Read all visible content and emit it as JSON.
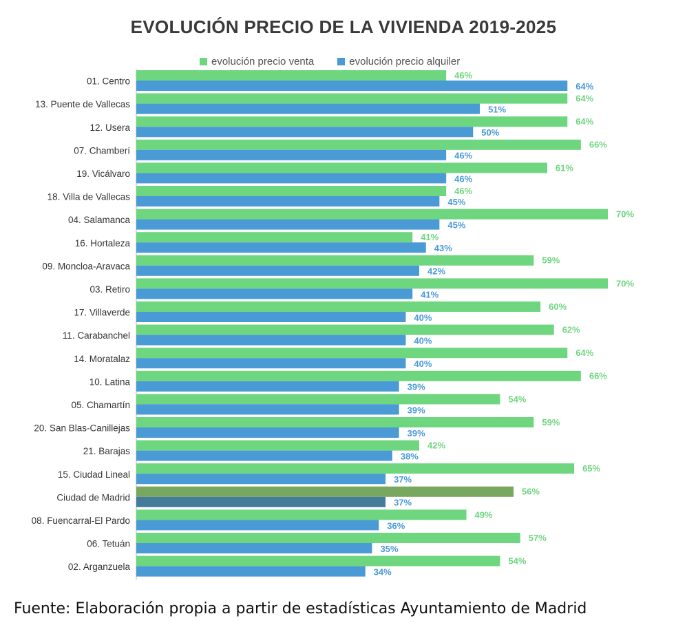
{
  "chart_data": {
    "type": "bar",
    "orientation": "horizontal",
    "title": "EVOLUCIÓN PRECIO DE LA VIVIENDA 2019-2025",
    "categories": [
      "01. Centro",
      "13. Puente de Vallecas",
      "12. Usera",
      "07. Chamberí",
      "19. Vicálvaro",
      "18. Villa de Vallecas",
      "04. Salamanca",
      "16. Hortaleza",
      "09. Moncloa-Aravaca",
      "03. Retiro",
      "17. Villaverde",
      "11. Carabanchel",
      "14. Moratalaz",
      "10. Latina",
      "05. Chamartín",
      "20. San Blas-Canillejas",
      "21. Barajas",
      "15. Ciudad Lineal",
      "Ciudad de Madrid",
      "08. Fuencarral-El Pardo",
      "06. Tetuán",
      "02. Arganzuela"
    ],
    "series": [
      {
        "name": "evolución precio venta",
        "color": "#6ed67f",
        "values": [
          46,
          64,
          64,
          66,
          61,
          46,
          70,
          41,
          59,
          70,
          60,
          62,
          64,
          66,
          54,
          59,
          42,
          65,
          56,
          49,
          57,
          54
        ],
        "labels": [
          "46%",
          "64%",
          "64%",
          "66%",
          "61%",
          "46%",
          "70%",
          "41%",
          "59%",
          "70%",
          "60%",
          "62%",
          "64%",
          "66%",
          "54%",
          "59%",
          "42%",
          "65%",
          "56%",
          "49%",
          "57%",
          "54%"
        ]
      },
      {
        "name": "evolución precio alquiler",
        "color": "#4a9ad6",
        "values": [
          64,
          51,
          50,
          46,
          46,
          45,
          45,
          43,
          42,
          41,
          40,
          40,
          40,
          39,
          39,
          39,
          38,
          37,
          37,
          36,
          35,
          34
        ],
        "labels": [
          "64%",
          "51%",
          "50%",
          "46%",
          "46%",
          "45%",
          "45%",
          "43%",
          "42%",
          "41%",
          "40%",
          "40%",
          "40%",
          "39%",
          "39%",
          "39%",
          "38%",
          "37%",
          "37%",
          "36%",
          "35%",
          "34%"
        ]
      }
    ],
    "highlight": {
      "category": "Ciudad de Madrid",
      "venta_color": "#78a860",
      "alquiler_color": "#457c9a"
    },
    "xlim": [
      0,
      70
    ],
    "grid": false,
    "legend_position": "top"
  },
  "source_note": "Fuente: Elaboración propia a partir de estadísticas Ayuntamiento de Madrid"
}
